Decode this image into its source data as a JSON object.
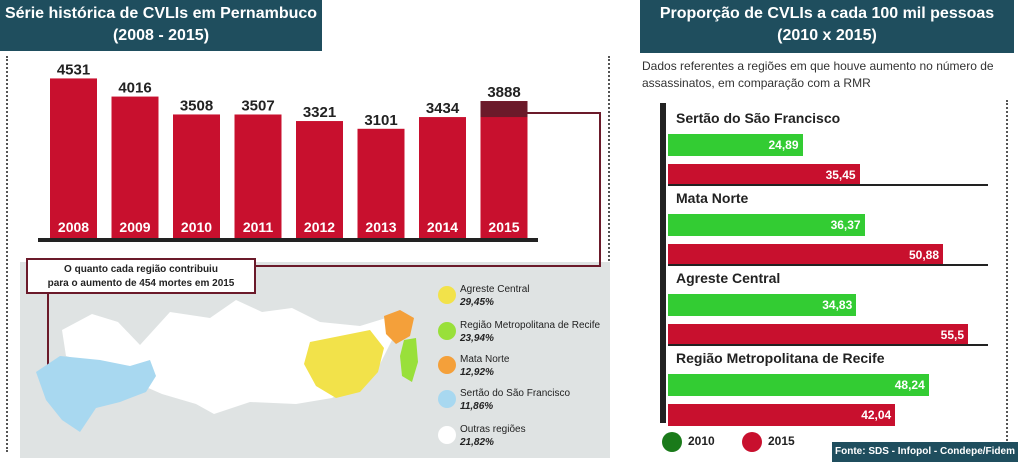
{
  "left_title": {
    "line1": "Série histórica de CVLIs em Pernambuco",
    "line2": "(2008 - 2015)"
  },
  "right_title": {
    "line1": "Proporção de CVLIs a cada 100 mil pessoas",
    "line2": "(2010 x 2015)"
  },
  "right_description": "Dados referentes a regiões em que houve aumento no número de assassinatos, em comparação com a RMR",
  "callout": {
    "line1": "O quanto cada região contribuiu",
    "line2": "para o aumento de 454 mortes em 2015"
  },
  "source": "Fonte: SDS - Infopol - Condepe/Fidem",
  "colors": {
    "dark": "#1f4e5e",
    "red": "#c8102e",
    "darkred": "#6b1a2a",
    "green": "#33cc33",
    "legend2010": "#1a7a1a",
    "legend2015": "#c8102e"
  },
  "chart_data": [
    {
      "type": "bar",
      "title": "Série histórica de CVLIs em Pernambuco",
      "categories": [
        "2008",
        "2009",
        "2010",
        "2011",
        "2012",
        "2013",
        "2014",
        "2015"
      ],
      "values": [
        4531,
        4016,
        3508,
        3507,
        3321,
        3101,
        3434,
        3888
      ],
      "value_labels": [
        "4531",
        "4016",
        "3508",
        "3507",
        "3321",
        "3101",
        "3434",
        "3888"
      ],
      "highlight_increase": {
        "category": "2015",
        "increase": 454
      },
      "ylim": [
        0,
        4600
      ]
    },
    {
      "type": "pie",
      "title": "O quanto cada região contribuiu para o aumento de 454 mortes em 2015",
      "slices": [
        {
          "name": "Agreste Central",
          "label": "29,45%",
          "value": 29.45,
          "color": "#f2e24a"
        },
        {
          "name": "Região Metropolitana de Recife",
          "label": "23,94%",
          "value": 23.94,
          "color": "#99e03a"
        },
        {
          "name": "Mata Norte",
          "label": "12,92%",
          "value": 12.92,
          "color": "#f4a03a"
        },
        {
          "name": "Sertão do São Francisco",
          "label": "11,86%",
          "value": 11.86,
          "color": "#a8d8f0"
        },
        {
          "name": "Outras regiões",
          "label": "21,82%",
          "value": 21.82,
          "color": "#ffffff"
        }
      ]
    },
    {
      "type": "bar",
      "orientation": "horizontal",
      "title": "Proporção de CVLIs a cada 100 mil pessoas",
      "categories": [
        "Sertão do São Francisco",
        "Mata Norte",
        "Agreste Central",
        "Região Metropolitana de Recife"
      ],
      "series": [
        {
          "name": "2010",
          "values": [
            24.89,
            36.37,
            34.83,
            48.24
          ],
          "labels": [
            "24,89",
            "36,37",
            "34,83",
            "48,24"
          ]
        },
        {
          "name": "2015",
          "values": [
            35.45,
            50.88,
            55.5,
            42.04
          ],
          "labels": [
            "35,45",
            "50,88",
            "55,5",
            "42,04"
          ]
        }
      ],
      "legend": "bottom"
    }
  ]
}
